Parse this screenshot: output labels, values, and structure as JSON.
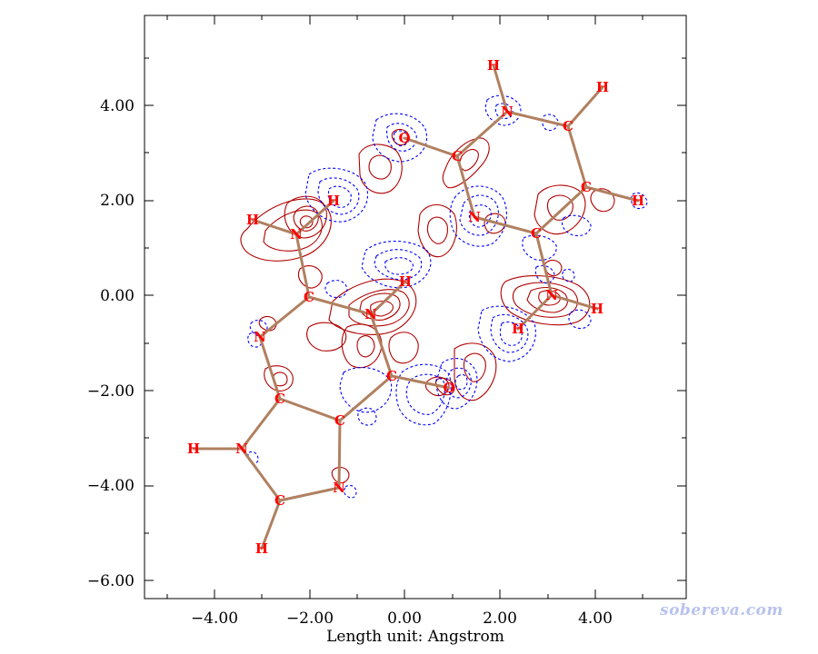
{
  "plot": {
    "xaxis_title": "Length unit: Angstrom",
    "x_tick_labels": [
      "−4.00",
      "−2.00",
      "0.00",
      "2.00",
      "4.00"
    ],
    "y_tick_labels": [
      "4.00",
      "2.00",
      "0.00",
      "−2.00",
      "−4.00",
      "−6.00"
    ],
    "watermark": "sobereva.com",
    "colors": {
      "bond": "#b08060",
      "positive_contour": "#b00000",
      "negative_contour": "#0000ff",
      "atom_label": "#ff0000"
    }
  },
  "atoms": [
    {
      "id": "H1",
      "label": "H"
    },
    {
      "id": "N1",
      "label": "N"
    },
    {
      "id": "C1",
      "label": "C"
    },
    {
      "id": "H2",
      "label": "H"
    },
    {
      "id": "C2",
      "label": "C"
    },
    {
      "id": "H3",
      "label": "H"
    },
    {
      "id": "O1",
      "label": "O"
    },
    {
      "id": "C3",
      "label": "C"
    },
    {
      "id": "N2",
      "label": "N"
    },
    {
      "id": "C4",
      "label": "C"
    },
    {
      "id": "N3",
      "label": "N"
    },
    {
      "id": "H4",
      "label": "H"
    },
    {
      "id": "H5",
      "label": "H"
    },
    {
      "id": "H6",
      "label": "H"
    },
    {
      "id": "N4",
      "label": "N"
    },
    {
      "id": "H7",
      "label": "H"
    },
    {
      "id": "C5",
      "label": "C"
    },
    {
      "id": "N5",
      "label": "N"
    },
    {
      "id": "H8",
      "label": "H"
    },
    {
      "id": "N6",
      "label": "N"
    },
    {
      "id": "C6",
      "label": "C"
    },
    {
      "id": "O2",
      "label": "O"
    },
    {
      "id": "C7",
      "label": "C"
    },
    {
      "id": "C8",
      "label": "C"
    },
    {
      "id": "H9",
      "label": "H"
    },
    {
      "id": "N7",
      "label": "N"
    },
    {
      "id": "C9",
      "label": "C"
    },
    {
      "id": "N8",
      "label": "N"
    },
    {
      "id": "H10",
      "label": "H"
    }
  ]
}
